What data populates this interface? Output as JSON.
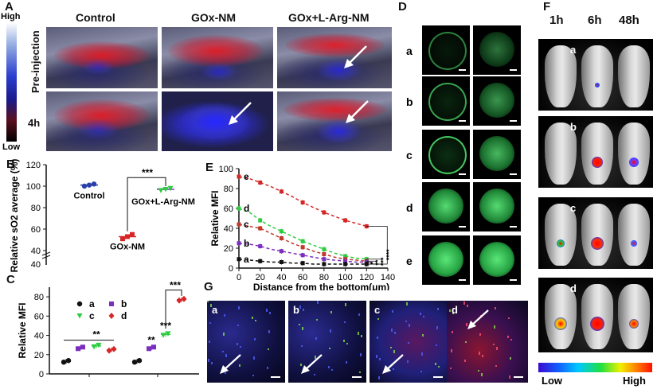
{
  "panel_labels": {
    "a": "A",
    "b": "B",
    "c": "C",
    "d": "D",
    "e": "E",
    "f": "F",
    "g": "G"
  },
  "panelA": {
    "columns": [
      "Control",
      "GOx-NM",
      "GOx+L-Arg-NM"
    ],
    "rows": [
      "Pre-injection",
      "4h"
    ],
    "scale_high": "High",
    "scale_low": "Low"
  },
  "panelD": {
    "rows": [
      "a",
      "b",
      "c",
      "d",
      "e"
    ]
  },
  "panelF": {
    "times": [
      "1h",
      "6h",
      "48h"
    ],
    "rows": [
      "a",
      "b",
      "c",
      "d"
    ],
    "scale_low": "Low",
    "scale_high": "High"
  },
  "panelG": {
    "labels": [
      "a",
      "b",
      "c",
      "d"
    ]
  },
  "colors": {
    "green": "#2ecc40",
    "red": "#d62728",
    "purple": "#7b2fbe",
    "black": "#111111"
  },
  "chart_data": [
    {
      "id": "B",
      "type": "scatter",
      "ylabel": "Relative sO2 average (%)",
      "yticks": [
        40,
        60,
        80,
        100,
        120
      ],
      "ylim": [
        40,
        120
      ],
      "groups": [
        {
          "name": "Control",
          "values": [
            100,
            101,
            102
          ],
          "mean": 101,
          "color": "#2b3fa8"
        },
        {
          "name": "GOx-NM",
          "values": [
            51,
            53,
            55
          ],
          "mean": 53,
          "color": "#d62728"
        },
        {
          "name": "GOx+L-Arg-NM",
          "values": [
            96,
            97,
            98
          ],
          "mean": 97,
          "color": "#7b2fbe"
        }
      ],
      "significance": "***"
    },
    {
      "id": "C",
      "type": "scatter",
      "ylabel": "Relative MFI",
      "yticks": [
        0,
        20,
        40,
        60,
        80
      ],
      "ylim": [
        0,
        90
      ],
      "legend": [
        {
          "name": "a",
          "color": "#111111"
        },
        {
          "name": "b",
          "color": "#7b2fbe"
        },
        {
          "name": "c",
          "color": "#2ecc40"
        },
        {
          "name": "d",
          "color": "#d62728"
        }
      ],
      "group1": [
        {
          "series": "a",
          "mean": 13
        },
        {
          "series": "b",
          "mean": 27
        },
        {
          "series": "c",
          "mean": 29
        },
        {
          "series": "d",
          "mean": 25
        }
      ],
      "group2": [
        {
          "series": "a",
          "mean": 13
        },
        {
          "series": "b",
          "mean": 27
        },
        {
          "series": "c",
          "mean": 41
        },
        {
          "series": "d",
          "mean": 77
        }
      ],
      "annotations": [
        "**",
        "**",
        "***",
        "***"
      ]
    },
    {
      "id": "E",
      "type": "line",
      "xlabel": "Distance from the bottom(μm)",
      "ylabel": "Relative MFI",
      "xticks": [
        0,
        20,
        40,
        60,
        80,
        100,
        120,
        140
      ],
      "yticks": [
        0,
        20,
        40,
        60,
        80,
        100
      ],
      "xlim": [
        0,
        140
      ],
      "ylim": [
        0,
        100
      ],
      "x": [
        0,
        10,
        20,
        30,
        40,
        50,
        60,
        70,
        80,
        90,
        100,
        110,
        120
      ],
      "series": [
        {
          "name": "e",
          "color": "#d62728",
          "values": [
            92,
            90,
            86,
            82,
            77,
            72,
            66,
            61,
            56,
            52,
            48,
            45,
            42
          ]
        },
        {
          "name": "d",
          "color": "#2ecc40",
          "values": [
            60,
            56,
            48,
            42,
            37,
            32,
            27,
            23,
            19,
            15,
            12,
            10,
            9
          ]
        },
        {
          "name": "c",
          "color": "#c0392b",
          "values": [
            44,
            42,
            40,
            35,
            30,
            25,
            21,
            17,
            14,
            11,
            9,
            8,
            7
          ]
        },
        {
          "name": "b",
          "color": "#7b2fbe",
          "values": [
            25,
            24,
            22,
            19,
            17,
            15,
            13,
            11,
            9,
            8,
            7,
            6,
            6
          ]
        },
        {
          "name": "a",
          "color": "#111111",
          "values": [
            9,
            8,
            7,
            6,
            6,
            5,
            5,
            4,
            4,
            4,
            4,
            4,
            4
          ]
        }
      ],
      "significance": [
        "****",
        "***",
        "**",
        "*"
      ]
    }
  ]
}
